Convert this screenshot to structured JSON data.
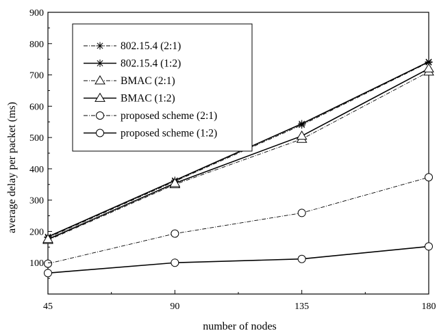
{
  "chart_data": {
    "type": "line",
    "xlabel": "number of nodes",
    "ylabel": "average delay per packet (ms)",
    "x": [
      45,
      90,
      135,
      180
    ],
    "x_ticks": [
      "45",
      "90",
      "135",
      "180"
    ],
    "xlim": [
      45,
      180
    ],
    "ylim": [
      0,
      900
    ],
    "y_ticks": [
      100,
      200,
      300,
      400,
      500,
      600,
      700,
      800,
      900
    ],
    "grid": false,
    "legend_position": "top-left",
    "series": [
      {
        "name": "802.15.4 (2:1)",
        "marker": "star",
        "line": "dashdot",
        "values": [
          180,
          360,
          540,
          740
        ]
      },
      {
        "name": "802.15.4 (1:2)",
        "marker": "star",
        "line": "solid",
        "values": [
          183,
          363,
          544,
          742
        ]
      },
      {
        "name": "BMAC (2:1)",
        "marker": "triangle",
        "line": "dashdot",
        "values": [
          172,
          350,
          495,
          710
        ]
      },
      {
        "name": "BMAC (1:2)",
        "marker": "triangle",
        "line": "solid",
        "values": [
          175,
          354,
          505,
          720
        ]
      },
      {
        "name": "proposed scheme (2:1)",
        "marker": "circle",
        "line": "dashdot",
        "values": [
          97,
          193,
          259,
          373
        ]
      },
      {
        "name": "proposed scheme (1:2)",
        "marker": "circle",
        "line": "solid",
        "values": [
          67,
          100,
          112,
          152
        ]
      }
    ]
  }
}
